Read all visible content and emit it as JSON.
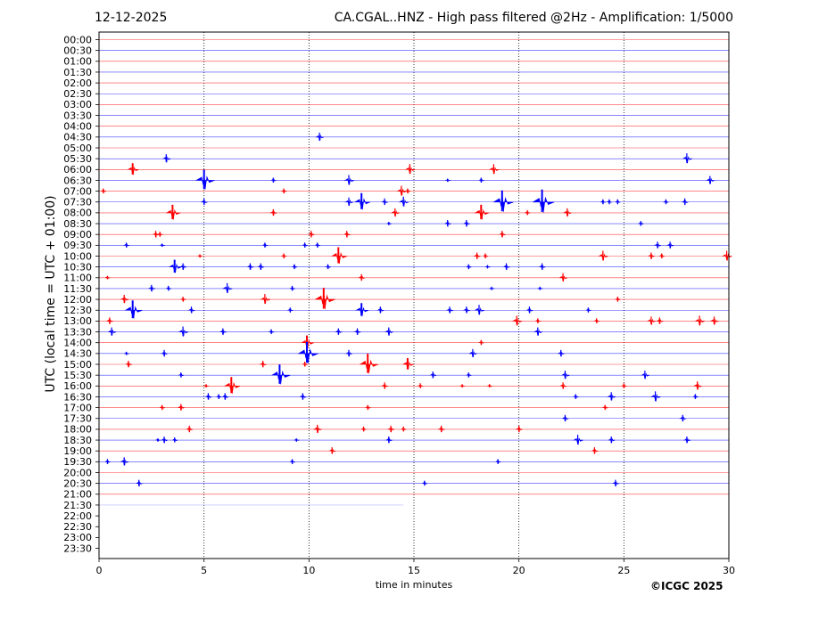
{
  "header": {
    "date": "12-12-2025",
    "title": "CA.CGAL..HNZ - High pass filtered @2Hz - Amplification: 1/5000"
  },
  "footer": {
    "credit": "©ICGC 2025"
  },
  "chart_data": {
    "type": "line",
    "title": "CA.CGAL..HNZ - High pass filtered @2Hz - Amplification: 1/5000",
    "xlabel": "time in minutes",
    "ylabel": "UTC (local time = UTC + 01:00)",
    "xlim": [
      0,
      30
    ],
    "xticks": [
      0,
      5,
      10,
      15,
      20,
      25,
      30
    ],
    "grid": "vertical dotted at 5, 10, 15, 20, 25 minutes",
    "colors": {
      "odd_trace": "#ff0000",
      "even_trace": "#0000ff",
      "last_trace": "#9999ff"
    },
    "rows": [
      "00:00",
      "00:30",
      "01:00",
      "01:30",
      "02:00",
      "02:30",
      "03:00",
      "03:30",
      "04:00",
      "04:30",
      "05:00",
      "05:30",
      "06:00",
      "06:30",
      "07:00",
      "07:30",
      "08:00",
      "08:30",
      "09:00",
      "09:30",
      "10:00",
      "10:30",
      "11:00",
      "11:30",
      "12:00",
      "12:30",
      "13:00",
      "13:30",
      "14:00",
      "14:30",
      "15:00",
      "15:30",
      "16:00",
      "16:30",
      "17:00",
      "17:30",
      "18:00",
      "18:30",
      "19:00",
      "19:30",
      "20:00",
      "20:30",
      "21:00",
      "21:30",
      "22:00",
      "22:30",
      "23:00",
      "23:30"
    ],
    "last_trace": {
      "row": "21:30",
      "end_minute": 14.5
    },
    "events": [
      {
        "row": "04:30",
        "t": 10.5,
        "a": 5
      },
      {
        "row": "05:30",
        "t": 3.2,
        "a": 5
      },
      {
        "row": "05:30",
        "t": 28.0,
        "a": 6
      },
      {
        "row": "06:00",
        "t": 1.6,
        "a": 7
      },
      {
        "row": "06:00",
        "t": 14.8,
        "a": 6
      },
      {
        "row": "06:00",
        "t": 18.8,
        "a": 6
      },
      {
        "row": "06:30",
        "t": 5.0,
        "a": 12
      },
      {
        "row": "06:30",
        "t": 8.3,
        "a": 3
      },
      {
        "row": "06:30",
        "t": 11.9,
        "a": 6
      },
      {
        "row": "06:30",
        "t": 16.6,
        "a": 2
      },
      {
        "row": "06:30",
        "t": 18.2,
        "a": 3
      },
      {
        "row": "06:30",
        "t": 29.1,
        "a": 5
      },
      {
        "row": "07:00",
        "t": 0.2,
        "a": 3
      },
      {
        "row": "07:00",
        "t": 8.8,
        "a": 3
      },
      {
        "row": "07:00",
        "t": 14.4,
        "a": 6
      },
      {
        "row": "07:00",
        "t": 14.7,
        "a": 3
      },
      {
        "row": "07:30",
        "t": 5.0,
        "a": 4
      },
      {
        "row": "07:30",
        "t": 11.9,
        "a": 5
      },
      {
        "row": "07:30",
        "t": 12.5,
        "a": 10
      },
      {
        "row": "07:30",
        "t": 13.6,
        "a": 4
      },
      {
        "row": "07:30",
        "t": 14.5,
        "a": 6
      },
      {
        "row": "07:30",
        "t": 19.2,
        "a": 13
      },
      {
        "row": "07:30",
        "t": 21.1,
        "a": 14
      },
      {
        "row": "07:30",
        "t": 24.0,
        "a": 3
      },
      {
        "row": "07:30",
        "t": 24.3,
        "a": 3
      },
      {
        "row": "07:30",
        "t": 24.7,
        "a": 3
      },
      {
        "row": "07:30",
        "t": 27.0,
        "a": 3
      },
      {
        "row": "07:30",
        "t": 27.9,
        "a": 4
      },
      {
        "row": "08:00",
        "t": 3.5,
        "a": 9
      },
      {
        "row": "08:00",
        "t": 8.3,
        "a": 4
      },
      {
        "row": "08:00",
        "t": 14.1,
        "a": 5
      },
      {
        "row": "08:00",
        "t": 18.2,
        "a": 9
      },
      {
        "row": "08:00",
        "t": 20.4,
        "a": 3
      },
      {
        "row": "08:00",
        "t": 22.3,
        "a": 5
      },
      {
        "row": "08:30",
        "t": 13.8,
        "a": 2
      },
      {
        "row": "08:30",
        "t": 16.6,
        "a": 4
      },
      {
        "row": "08:30",
        "t": 17.5,
        "a": 4
      },
      {
        "row": "08:30",
        "t": 25.8,
        "a": 3
      },
      {
        "row": "09:00",
        "t": 2.7,
        "a": 4
      },
      {
        "row": "09:00",
        "t": 2.9,
        "a": 3
      },
      {
        "row": "09:00",
        "t": 10.1,
        "a": 4
      },
      {
        "row": "09:00",
        "t": 11.8,
        "a": 4
      },
      {
        "row": "09:00",
        "t": 19.2,
        "a": 4
      },
      {
        "row": "09:30",
        "t": 1.3,
        "a": 3
      },
      {
        "row": "09:30",
        "t": 3.0,
        "a": 2
      },
      {
        "row": "09:30",
        "t": 7.9,
        "a": 3
      },
      {
        "row": "09:30",
        "t": 9.8,
        "a": 3
      },
      {
        "row": "09:30",
        "t": 10.4,
        "a": 3
      },
      {
        "row": "09:30",
        "t": 26.6,
        "a": 4
      },
      {
        "row": "09:30",
        "t": 27.2,
        "a": 4
      },
      {
        "row": "10:00",
        "t": 4.8,
        "a": 2
      },
      {
        "row": "10:00",
        "t": 8.8,
        "a": 3
      },
      {
        "row": "10:00",
        "t": 11.4,
        "a": 10
      },
      {
        "row": "10:00",
        "t": 18.0,
        "a": 4
      },
      {
        "row": "10:00",
        "t": 18.4,
        "a": 3
      },
      {
        "row": "10:00",
        "t": 24.0,
        "a": 6
      },
      {
        "row": "10:00",
        "t": 26.3,
        "a": 4
      },
      {
        "row": "10:00",
        "t": 26.8,
        "a": 3
      },
      {
        "row": "10:00",
        "t": 29.9,
        "a": 6
      },
      {
        "row": "10:30",
        "t": 3.6,
        "a": 8
      },
      {
        "row": "10:30",
        "t": 4.0,
        "a": 4
      },
      {
        "row": "10:30",
        "t": 7.2,
        "a": 4
      },
      {
        "row": "10:30",
        "t": 7.7,
        "a": 4
      },
      {
        "row": "10:30",
        "t": 9.3,
        "a": 3
      },
      {
        "row": "10:30",
        "t": 10.9,
        "a": 3
      },
      {
        "row": "10:30",
        "t": 17.6,
        "a": 3
      },
      {
        "row": "10:30",
        "t": 18.5,
        "a": 2
      },
      {
        "row": "10:30",
        "t": 19.4,
        "a": 4
      },
      {
        "row": "10:30",
        "t": 21.1,
        "a": 4
      },
      {
        "row": "11:00",
        "t": 0.4,
        "a": 2
      },
      {
        "row": "11:00",
        "t": 12.5,
        "a": 4
      },
      {
        "row": "11:00",
        "t": 22.1,
        "a": 5
      },
      {
        "row": "11:30",
        "t": 2.5,
        "a": 4
      },
      {
        "row": "11:30",
        "t": 3.3,
        "a": 3
      },
      {
        "row": "11:30",
        "t": 6.1,
        "a": 6
      },
      {
        "row": "11:30",
        "t": 9.2,
        "a": 3
      },
      {
        "row": "11:30",
        "t": 18.7,
        "a": 2
      },
      {
        "row": "11:30",
        "t": 21.0,
        "a": 2
      },
      {
        "row": "12:00",
        "t": 1.2,
        "a": 5
      },
      {
        "row": "12:00",
        "t": 4.0,
        "a": 3
      },
      {
        "row": "12:00",
        "t": 7.9,
        "a": 6
      },
      {
        "row": "12:00",
        "t": 10.7,
        "a": 13
      },
      {
        "row": "12:00",
        "t": 24.7,
        "a": 3
      },
      {
        "row": "12:30",
        "t": 1.6,
        "a": 11
      },
      {
        "row": "12:30",
        "t": 4.4,
        "a": 4
      },
      {
        "row": "12:30",
        "t": 9.1,
        "a": 3
      },
      {
        "row": "12:30",
        "t": 12.5,
        "a": 8
      },
      {
        "row": "12:30",
        "t": 13.4,
        "a": 4
      },
      {
        "row": "12:30",
        "t": 16.7,
        "a": 4
      },
      {
        "row": "12:30",
        "t": 17.5,
        "a": 4
      },
      {
        "row": "12:30",
        "t": 18.1,
        "a": 6
      },
      {
        "row": "12:30",
        "t": 20.5,
        "a": 4
      },
      {
        "row": "12:30",
        "t": 23.3,
        "a": 3
      },
      {
        "row": "13:00",
        "t": 0.5,
        "a": 4
      },
      {
        "row": "13:00",
        "t": 19.9,
        "a": 6
      },
      {
        "row": "13:00",
        "t": 20.9,
        "a": 3
      },
      {
        "row": "13:00",
        "t": 23.7,
        "a": 3
      },
      {
        "row": "13:00",
        "t": 26.3,
        "a": 5
      },
      {
        "row": "13:00",
        "t": 26.7,
        "a": 4
      },
      {
        "row": "13:00",
        "t": 28.6,
        "a": 6
      },
      {
        "row": "13:00",
        "t": 29.3,
        "a": 5
      },
      {
        "row": "13:30",
        "t": 0.6,
        "a": 5
      },
      {
        "row": "13:30",
        "t": 4.0,
        "a": 6
      },
      {
        "row": "13:30",
        "t": 5.9,
        "a": 4
      },
      {
        "row": "13:30",
        "t": 8.2,
        "a": 3
      },
      {
        "row": "13:30",
        "t": 11.4,
        "a": 4
      },
      {
        "row": "13:30",
        "t": 12.3,
        "a": 4
      },
      {
        "row": "13:30",
        "t": 13.8,
        "a": 5
      },
      {
        "row": "13:30",
        "t": 20.9,
        "a": 5
      },
      {
        "row": "14:00",
        "t": 9.9,
        "a": 8
      },
      {
        "row": "14:00",
        "t": 18.2,
        "a": 3
      },
      {
        "row": "14:30",
        "t": 1.3,
        "a": 2
      },
      {
        "row": "14:30",
        "t": 3.1,
        "a": 4
      },
      {
        "row": "14:30",
        "t": 9.9,
        "a": 13
      },
      {
        "row": "14:30",
        "t": 11.9,
        "a": 4
      },
      {
        "row": "14:30",
        "t": 17.8,
        "a": 5
      },
      {
        "row": "14:30",
        "t": 22.0,
        "a": 4
      },
      {
        "row": "15:00",
        "t": 1.4,
        "a": 4
      },
      {
        "row": "15:00",
        "t": 7.8,
        "a": 4
      },
      {
        "row": "15:00",
        "t": 9.8,
        "a": 3
      },
      {
        "row": "15:00",
        "t": 12.8,
        "a": 12
      },
      {
        "row": "15:00",
        "t": 14.7,
        "a": 7
      },
      {
        "row": "15:30",
        "t": 3.9,
        "a": 3
      },
      {
        "row": "15:30",
        "t": 8.6,
        "a": 12
      },
      {
        "row": "15:30",
        "t": 15.9,
        "a": 4
      },
      {
        "row": "15:30",
        "t": 17.6,
        "a": 3
      },
      {
        "row": "15:30",
        "t": 22.2,
        "a": 5
      },
      {
        "row": "15:30",
        "t": 26.0,
        "a": 5
      },
      {
        "row": "16:00",
        "t": 5.1,
        "a": 2
      },
      {
        "row": "16:00",
        "t": 6.3,
        "a": 10
      },
      {
        "row": "16:00",
        "t": 13.6,
        "a": 4
      },
      {
        "row": "16:00",
        "t": 15.3,
        "a": 3
      },
      {
        "row": "16:00",
        "t": 17.3,
        "a": 2
      },
      {
        "row": "16:00",
        "t": 18.6,
        "a": 2
      },
      {
        "row": "16:00",
        "t": 22.1,
        "a": 4
      },
      {
        "row": "16:00",
        "t": 25.0,
        "a": 3
      },
      {
        "row": "16:00",
        "t": 28.5,
        "a": 5
      },
      {
        "row": "16:30",
        "t": 5.2,
        "a": 4
      },
      {
        "row": "16:30",
        "t": 5.7,
        "a": 3
      },
      {
        "row": "16:30",
        "t": 6.0,
        "a": 4
      },
      {
        "row": "16:30",
        "t": 9.7,
        "a": 4
      },
      {
        "row": "16:30",
        "t": 22.7,
        "a": 3
      },
      {
        "row": "16:30",
        "t": 24.4,
        "a": 5
      },
      {
        "row": "16:30",
        "t": 26.5,
        "a": 6
      },
      {
        "row": "16:30",
        "t": 28.4,
        "a": 3
      },
      {
        "row": "17:00",
        "t": 3.0,
        "a": 3
      },
      {
        "row": "17:00",
        "t": 3.9,
        "a": 4
      },
      {
        "row": "17:00",
        "t": 12.8,
        "a": 3
      },
      {
        "row": "17:00",
        "t": 24.1,
        "a": 3
      },
      {
        "row": "17:30",
        "t": 22.2,
        "a": 4
      },
      {
        "row": "17:30",
        "t": 27.8,
        "a": 4
      },
      {
        "row": "18:00",
        "t": 4.3,
        "a": 4
      },
      {
        "row": "18:00",
        "t": 10.4,
        "a": 5
      },
      {
        "row": "18:00",
        "t": 12.6,
        "a": 3
      },
      {
        "row": "18:00",
        "t": 13.9,
        "a": 4
      },
      {
        "row": "18:00",
        "t": 14.5,
        "a": 3
      },
      {
        "row": "18:00",
        "t": 16.3,
        "a": 4
      },
      {
        "row": "18:00",
        "t": 20.0,
        "a": 4
      },
      {
        "row": "18:30",
        "t": 2.8,
        "a": 2
      },
      {
        "row": "18:30",
        "t": 3.1,
        "a": 4
      },
      {
        "row": "18:30",
        "t": 3.6,
        "a": 3
      },
      {
        "row": "18:30",
        "t": 9.4,
        "a": 2
      },
      {
        "row": "18:30",
        "t": 13.8,
        "a": 4
      },
      {
        "row": "18:30",
        "t": 22.8,
        "a": 6
      },
      {
        "row": "18:30",
        "t": 24.4,
        "a": 4
      },
      {
        "row": "18:30",
        "t": 28.0,
        "a": 4
      },
      {
        "row": "19:00",
        "t": 11.1,
        "a": 4
      },
      {
        "row": "19:00",
        "t": 23.6,
        "a": 4
      },
      {
        "row": "19:30",
        "t": 0.4,
        "a": 3
      },
      {
        "row": "19:30",
        "t": 1.2,
        "a": 5
      },
      {
        "row": "19:30",
        "t": 9.2,
        "a": 3
      },
      {
        "row": "19:30",
        "t": 19.0,
        "a": 3
      },
      {
        "row": "20:30",
        "t": 1.9,
        "a": 4
      },
      {
        "row": "20:30",
        "t": 15.5,
        "a": 3
      },
      {
        "row": "20:30",
        "t": 24.6,
        "a": 4
      }
    ]
  }
}
